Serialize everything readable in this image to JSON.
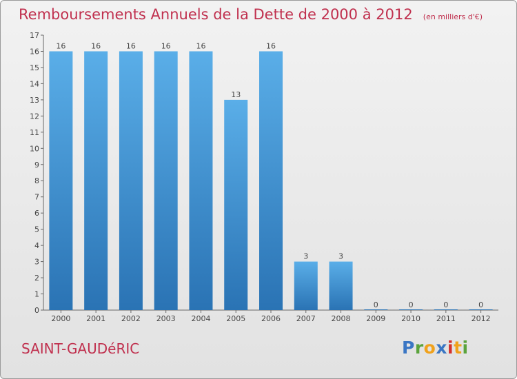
{
  "title": "Remboursements Annuels de la Dette de 2000 à 2012",
  "unit_note": "(en milliers d'€)",
  "commune": "SAINT-GAUDéRIC",
  "brand": {
    "letters": [
      "P",
      "r",
      "o",
      "x",
      "i",
      "t",
      "i"
    ],
    "colors": [
      "#3a76c4",
      "#5aa33c",
      "#f0a21c",
      "#3a76c4",
      "#d4302c",
      "#f0a21c",
      "#5aa33c"
    ]
  },
  "colors": {
    "bar_top": "#5aaee8",
    "bar_bottom": "#2a73b4",
    "accent": "#c0304e"
  },
  "chart_data": {
    "type": "bar",
    "categories": [
      "2000",
      "2001",
      "2002",
      "2003",
      "2004",
      "2005",
      "2006",
      "2007",
      "2008",
      "2009",
      "2010",
      "2011",
      "2012"
    ],
    "values": [
      16,
      16,
      16,
      16,
      16,
      13,
      16,
      3,
      3,
      0,
      0,
      0,
      0
    ],
    "y_ticks": [
      0,
      1,
      2,
      3,
      4,
      5,
      6,
      7,
      8,
      9,
      10,
      11,
      12,
      13,
      14,
      15,
      16,
      17
    ],
    "ylim": [
      0,
      17
    ],
    "title": "Remboursements Annuels de la Dette de 2000 à 2012",
    "xlabel": "",
    "ylabel": "",
    "grid": false
  }
}
